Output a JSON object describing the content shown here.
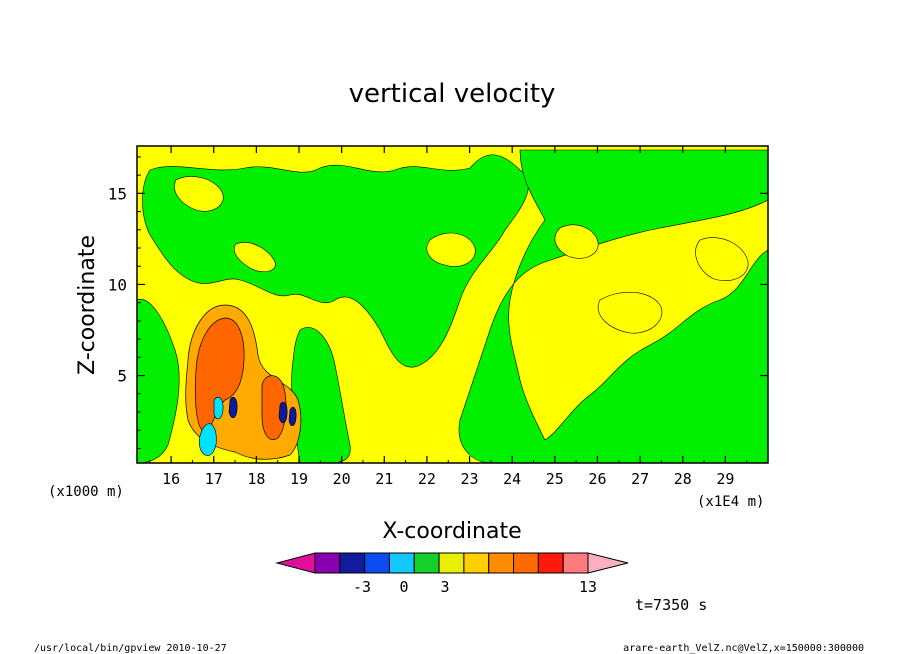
{
  "chart_data": {
    "type": "heatmap",
    "title": "vertical velocity",
    "xlabel": "X-coordinate",
    "ylabel": "Z-coordinate",
    "x_unit_left": "(x1000 m)",
    "x_unit_right": "(x1E4 m)",
    "xlim": [
      15.2,
      30.0
    ],
    "ylim": [
      0.2,
      17.6
    ],
    "x_ticks": [
      "16",
      "17",
      "18",
      "19",
      "20",
      "21",
      "22",
      "23",
      "24",
      "25",
      "26",
      "27",
      "28",
      "29"
    ],
    "y_ticks": [
      "5",
      "10",
      "15"
    ],
    "colorbar": {
      "colors": [
        "#e0109a",
        "#8a00b0",
        "#101c9c",
        "#0a4cf0",
        "#12c8ff",
        "#16d02a",
        "#e8f000",
        "#ffd000",
        "#ff8c00",
        "#ff6a00",
        "#ff1a0a",
        "#ff7a7a",
        "#ffb0c0"
      ],
      "labels": [
        "-3",
        "0",
        "3",
        "13"
      ]
    },
    "time_label": "t=7350 s",
    "colors": {
      "yellow": "#ffff00",
      "green": "#00f000",
      "orange": "#ff6600",
      "light_orange": "#ffaa00",
      "cyan": "#00e0ff",
      "blue": "#0000c0"
    }
  },
  "footer": {
    "left": "/usr/local/bin/gpview   2010-10-27",
    "right": "arare-earth_VelZ.nc@VelZ,x=150000:300000"
  }
}
